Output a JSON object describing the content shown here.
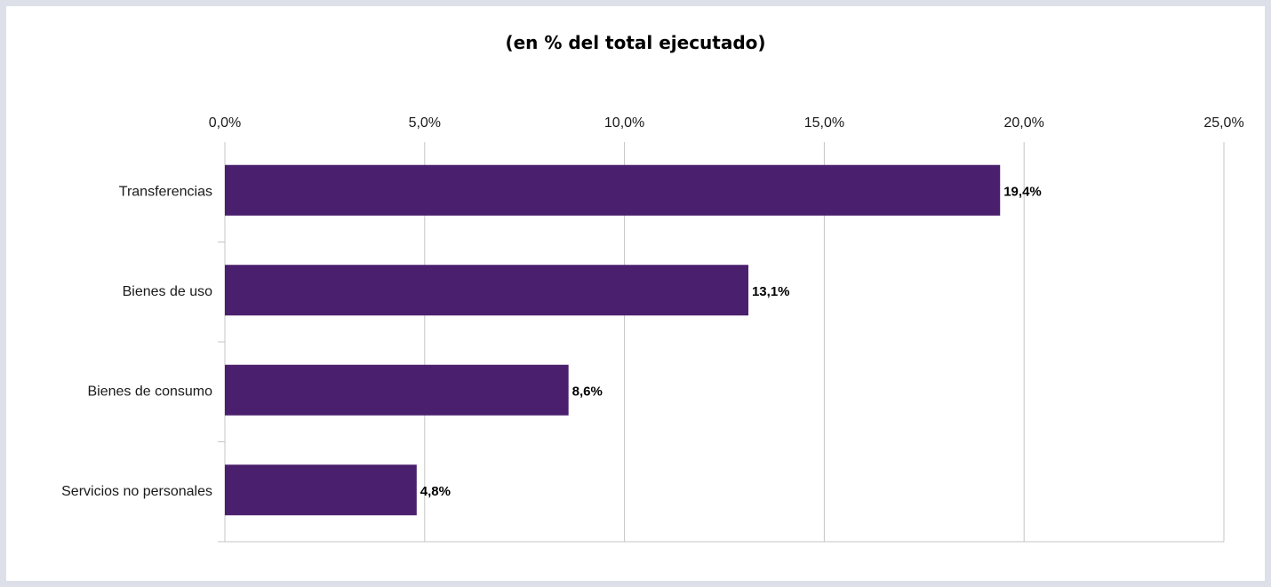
{
  "chart_data": {
    "type": "bar",
    "orientation": "horizontal",
    "title": "(en % del total ejecutado)",
    "categories": [
      "Transferencias",
      "Bienes de uso",
      "Bienes de consumo",
      "Servicios no personales"
    ],
    "values": [
      19.4,
      13.1,
      8.6,
      4.8
    ],
    "data_labels": [
      "19,4%",
      "13,1%",
      "8,6%",
      "4,8%"
    ],
    "xlim": [
      0,
      25
    ],
    "x_ticks": [
      0,
      5,
      10,
      15,
      20,
      25
    ],
    "x_tick_labels": [
      "0,0%",
      "5,0%",
      "10,0%",
      "15,0%",
      "20,0%",
      "25,0%"
    ],
    "x_axis_position": "top",
    "xlabel": "",
    "ylabel": "",
    "grid": true,
    "legend": "none"
  },
  "colors": {
    "bar": "#4a1f6d",
    "grid": "#c4c4c4",
    "frame": "#dde0e9"
  }
}
